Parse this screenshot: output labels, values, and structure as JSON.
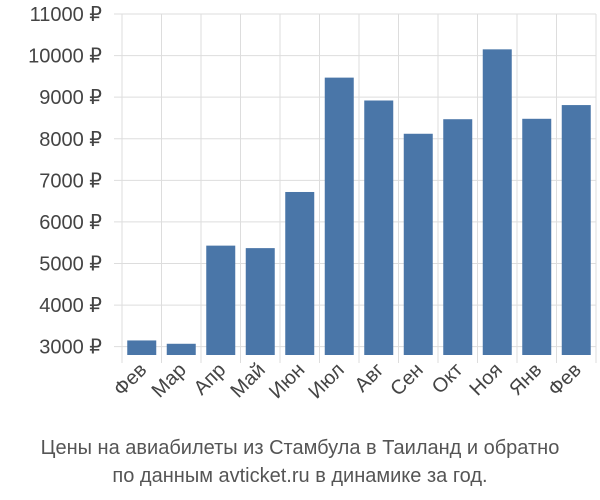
{
  "chart_data": {
    "type": "bar",
    "categories": [
      "Фев",
      "Мар",
      "Апр",
      "Май",
      "Июн",
      "Июл",
      "Авг",
      "Сен",
      "Окт",
      "Ноя",
      "Янв",
      "Фев"
    ],
    "values": [
      3150,
      3070,
      5430,
      5370,
      6720,
      9470,
      8920,
      8120,
      8470,
      10150,
      8480,
      8810
    ],
    "ylim": [
      2800,
      11000
    ],
    "yticks": [
      3000,
      4000,
      5000,
      6000,
      7000,
      8000,
      9000,
      10000,
      11000
    ],
    "ytick_labels": [
      "3000 ₽",
      "4000 ₽",
      "5000 ₽",
      "6000 ₽",
      "7000 ₽",
      "8000 ₽",
      "9000 ₽",
      "10000 ₽",
      "11000 ₽"
    ],
    "grid": true,
    "bar_color": "#4a76a8",
    "grid_color": "#dddddd"
  },
  "caption": {
    "line1": "Цены на авиабилеты из Стамбула в Таиланд и обратно",
    "line2": "по данным avticket.ru в динамике за год."
  }
}
